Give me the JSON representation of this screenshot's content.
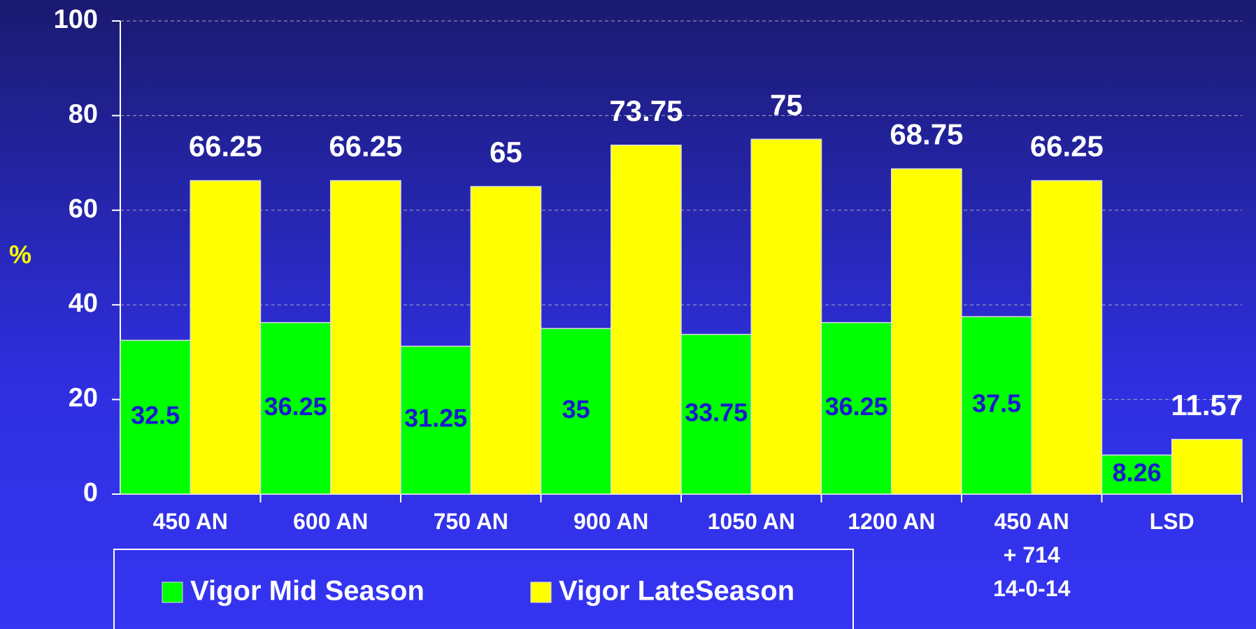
{
  "chart_data": {
    "type": "bar",
    "y_label": "%",
    "categories": [
      "450 AN",
      "600 AN",
      "750 AN",
      "900 AN",
      "1050 AN",
      "1200 AN",
      "450 AN\n+ 714\n14-0-14",
      "LSD"
    ],
    "series": [
      {
        "name": "Vigor Mid Season",
        "color": "#00ff00",
        "label_color": "#1a1ad0",
        "values": [
          32.5,
          36.25,
          31.25,
          35,
          33.75,
          36.25,
          37.5,
          8.26
        ]
      },
      {
        "name": "Vigor LateSeason",
        "color": "#ffff00",
        "label_color": "#ffffff",
        "values": [
          66.25,
          66.25,
          65,
          73.75,
          75,
          68.75,
          66.25,
          11.57
        ]
      }
    ],
    "ylim": [
      0,
      100
    ],
    "yticks": [
      0,
      20,
      40,
      60,
      80,
      100
    ],
    "grid": true
  }
}
